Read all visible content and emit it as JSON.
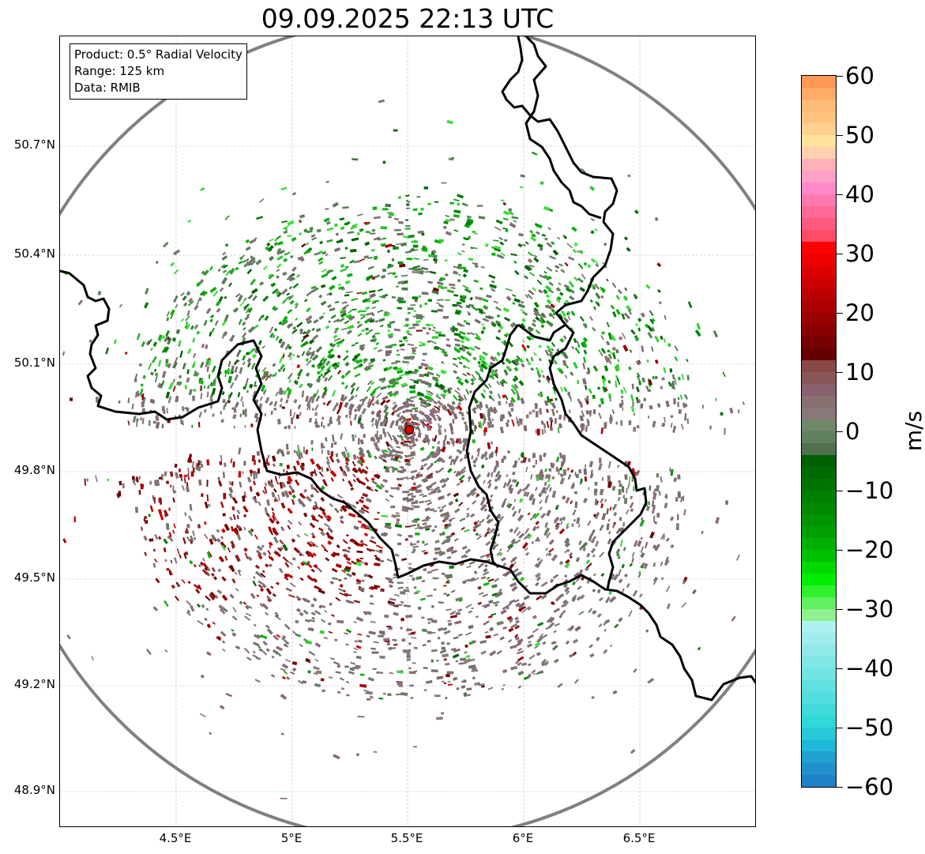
{
  "title": "09.09.2025 22:13 UTC",
  "info": {
    "product": "Product: 0.5° Radial Velocity",
    "range": "Range: 125 km",
    "source": "Data: RMIB"
  },
  "map": {
    "lat_labels": [
      "50.7°N",
      "50.4°N",
      "50.1°N",
      "49.8°N",
      "49.5°N",
      "49.2°N",
      "48.9°N"
    ],
    "lon_labels": [
      "4.5°E",
      "5°E",
      "5.5°E",
      "6°E",
      "6.5°E"
    ],
    "radar_site": {
      "lon": 5.505,
      "lat": 49.914
    },
    "range_km": 125,
    "extent": {
      "lon": [
        4.0,
        7.0
      ],
      "lat": [
        48.8,
        51.0
      ]
    },
    "colors": {
      "range_ring": "#808080",
      "border": "#000000",
      "radar_marker": "#e00000",
      "grid": "#b0b0b0"
    }
  },
  "colorbar": {
    "unit": "m/s",
    "ticks": [
      "60",
      "50",
      "40",
      "30",
      "20",
      "10",
      "0",
      "−10",
      "−20",
      "−30",
      "−40",
      "−50",
      "−60"
    ],
    "min": -60,
    "max": 60,
    "bands": [
      "#ff9955",
      "#ffaa66",
      "#ffbb77",
      "#ffc380",
      "#ffd090",
      "#ffe39a",
      "#ffd0b0",
      "#ffb0b8",
      "#ffa0c8",
      "#ff88c8",
      "#ff78b0",
      "#ff6a98",
      "#ff5a80",
      "#ff4a68",
      "#ff0000",
      "#ee0000",
      "#dd0000",
      "#cc0000",
      "#bb0000",
      "#aa0000",
      "#990000",
      "#880000",
      "#770000",
      "#660000",
      "#884848",
      "#885858",
      "#886070",
      "#887070",
      "#887878",
      "#708868",
      "#608060",
      "#507050",
      "#006000",
      "#006a00",
      "#007400",
      "#007e00",
      "#008800",
      "#009400",
      "#00a000",
      "#00b000",
      "#00c000",
      "#00d800",
      "#00ee00",
      "#30f030",
      "#60f060",
      "#90f090",
      "#b0f0f0",
      "#a0ecec",
      "#90e8e8",
      "#80e6e6",
      "#70e4e4",
      "#60e0e0",
      "#50dede",
      "#40dada",
      "#30d8d8",
      "#28c8d8",
      "#20b8d8",
      "#20a0d0",
      "#2090cc",
      "#2080c8"
    ]
  }
}
